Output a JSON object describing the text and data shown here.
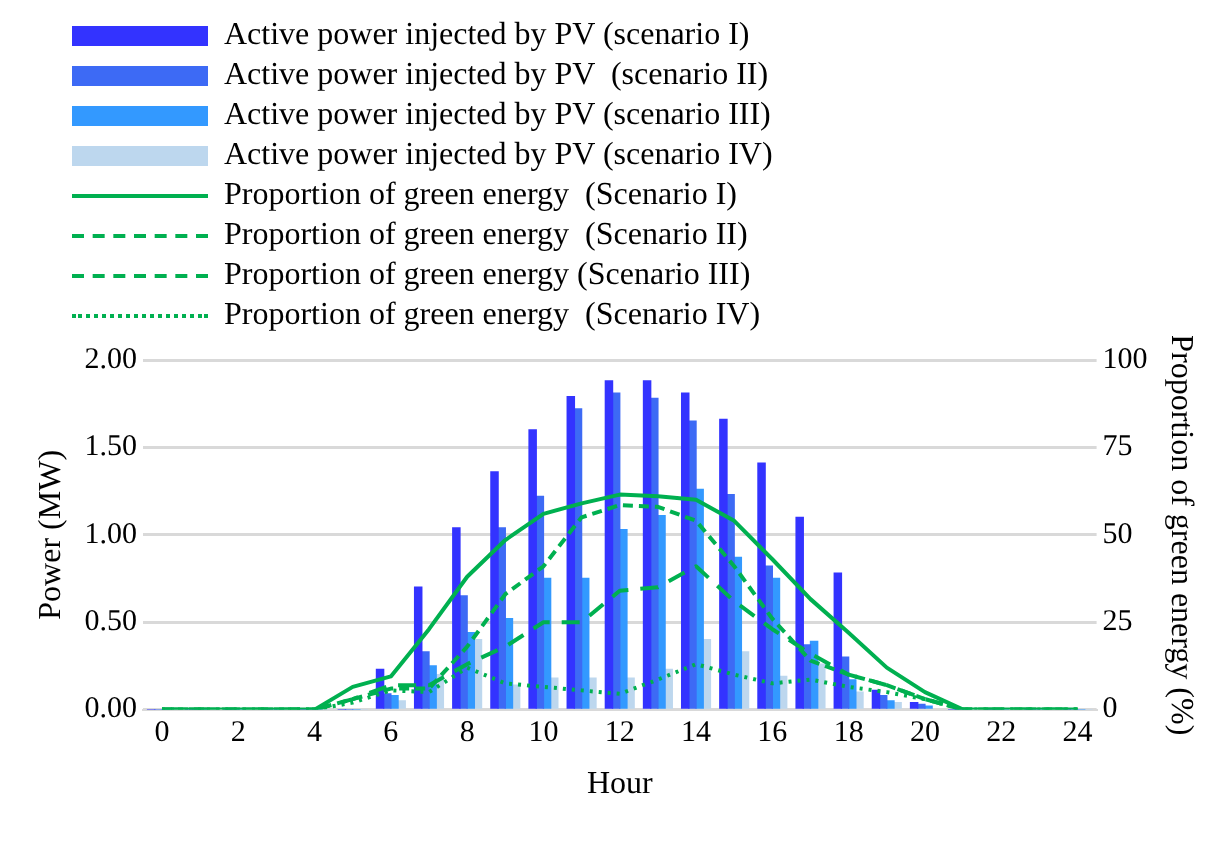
{
  "chart_data": {
    "type": "bar",
    "xlabel": "Hour",
    "ylabel": "Power (MW)",
    "y2label": "Proportion of green energy (%)",
    "x": [
      0,
      1,
      2,
      3,
      4,
      5,
      6,
      7,
      8,
      9,
      10,
      11,
      12,
      13,
      14,
      15,
      16,
      17,
      18,
      19,
      20,
      21,
      22,
      23,
      24
    ],
    "xlim": [
      -0.5,
      24.5
    ],
    "xticks": [
      0,
      2,
      4,
      6,
      8,
      10,
      12,
      14,
      16,
      18,
      20,
      22,
      24
    ],
    "ylim": [
      0,
      2
    ],
    "yticks": [
      {
        "value": 0,
        "label": "0.00"
      },
      {
        "value": 0.5,
        "label": "0.50"
      },
      {
        "value": 1,
        "label": "1.00"
      },
      {
        "value": 1.5,
        "label": "1.50"
      },
      {
        "value": 2,
        "label": "2.00"
      }
    ],
    "y2lim": [
      0,
      100
    ],
    "y2ticks": [
      0,
      25,
      50,
      75,
      100
    ],
    "grid": "y",
    "legend": "top",
    "marker": "none",
    "series": [
      {
        "name": "Active power injected by PV (scenario I)",
        "color": "#3333ff",
        "values": [
          0,
          0,
          0,
          0,
          0,
          0,
          0.23,
          0.7,
          1.04,
          1.36,
          1.6,
          1.79,
          1.88,
          1.88,
          1.81,
          1.66,
          1.41,
          1.1,
          0.78,
          0.11,
          0.04,
          0,
          0,
          0,
          0
        ]
      },
      {
        "name": "Active power injected by PV  (scenario II)",
        "color": "#3d6af5",
        "values": [
          0,
          0,
          0,
          0,
          0,
          0,
          0.09,
          0.33,
          0.65,
          1.04,
          1.22,
          1.72,
          1.81,
          1.78,
          1.65,
          1.23,
          0.82,
          0.37,
          0.3,
          0.08,
          0.03,
          0,
          0,
          0,
          0
        ]
      },
      {
        "name": "Active power injected by PV (scenario III)",
        "color": "#3399ff",
        "values": [
          0,
          0,
          0,
          0,
          0,
          0,
          0.08,
          0.25,
          0.44,
          0.52,
          0.75,
          0.75,
          1.03,
          1.11,
          1.26,
          0.87,
          0.75,
          0.39,
          0.17,
          0.05,
          0.02,
          0,
          0,
          0,
          0
        ]
      },
      {
        "name": "Active power injected by PV (scenario IV)",
        "color": "#bdd7ee",
        "values": [
          0,
          0,
          0,
          0,
          0,
          0,
          0.05,
          0.2,
          0.4,
          0.14,
          0.18,
          0.18,
          0.18,
          0.23,
          0.4,
          0.33,
          0.19,
          0.26,
          0.1,
          0.04,
          null,
          0,
          0,
          0,
          0
        ]
      },
      {
        "name": "Proportion of green energy  (Scenario I)",
        "type": "line",
        "axis": "y2",
        "line_style": "solid",
        "color": "#00b050",
        "values": [
          0,
          0,
          0,
          0,
          0,
          6.5,
          9.5,
          23,
          38,
          48.5,
          56,
          59,
          61.5,
          61,
          60,
          54,
          43,
          31.6,
          22,
          12,
          5,
          0,
          0,
          0,
          0
        ]
      },
      {
        "name": "Proportion of green energy  (Scenario II)",
        "type": "line",
        "axis": "y2",
        "line_style": "dashed",
        "color": "#00b050",
        "values": [
          0,
          0,
          0,
          0,
          0,
          3,
          6,
          6,
          18,
          33,
          41,
          55,
          58.5,
          58,
          54,
          41,
          26,
          14,
          10,
          7,
          3,
          0,
          0,
          0,
          0
        ]
      },
      {
        "name": "Proportion of green energy (Scenario III)",
        "type": "line",
        "axis": "y2",
        "line_style": "longdash",
        "color": "#00b050",
        "values": [
          0,
          0,
          0,
          0,
          0,
          3,
          7,
          7,
          13,
          18,
          25,
          25,
          34,
          35,
          41,
          31,
          23,
          16,
          10,
          7,
          3,
          0,
          0,
          0,
          0
        ]
      },
      {
        "name": "Proportion of green energy  (Scenario IV)",
        "type": "line",
        "axis": "y2",
        "line_style": "dotted",
        "color": "#00b050",
        "values": [
          0,
          0,
          0,
          0,
          0,
          2,
          5.5,
          5,
          12,
          7.5,
          6.5,
          5.5,
          4.5,
          8.6,
          13,
          10,
          7.5,
          8.6,
          6.5,
          5,
          3,
          0,
          0,
          0,
          0
        ]
      }
    ]
  }
}
